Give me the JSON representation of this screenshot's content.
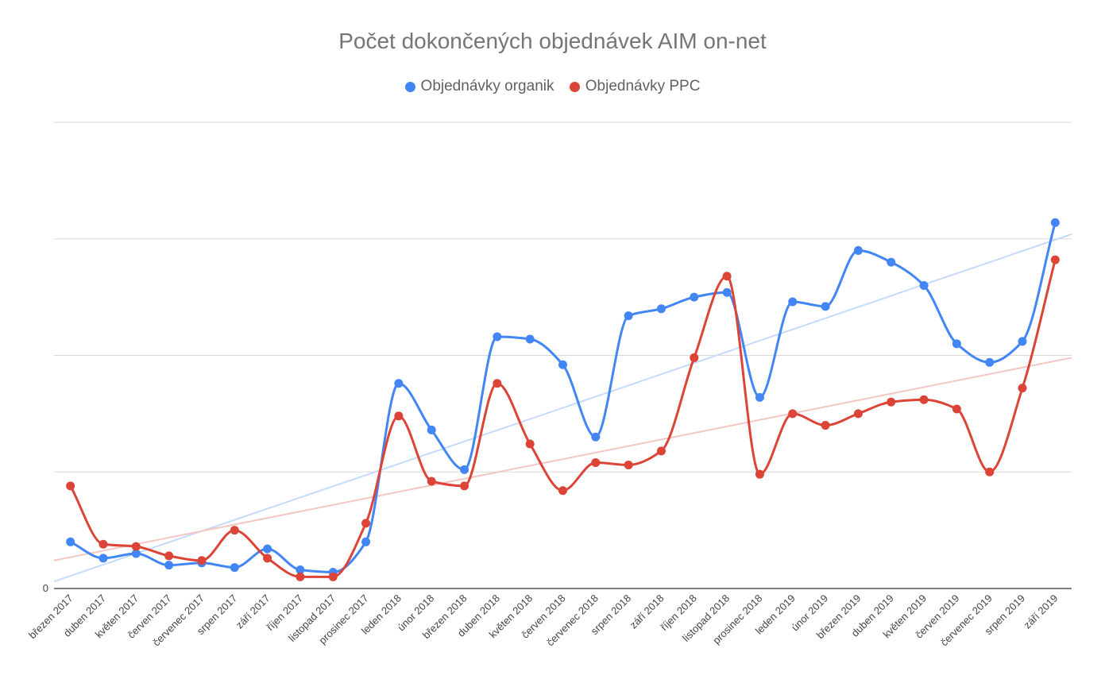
{
  "chart_data": {
    "type": "line",
    "title": "Počet dokončených objednávek AIM on-net",
    "xlabel": "",
    "ylabel": "",
    "y_tick_labels": [
      "0"
    ],
    "ylim": [
      0,
      100
    ],
    "grid": true,
    "legend_position": "top",
    "smooth": true,
    "categories": [
      "březen 2017",
      "duben 2017",
      "květen 2017",
      "červen 2017",
      "červenec 2017",
      "srpen 2017",
      "září 2017",
      "říjen 2017",
      "listopad 2017",
      "prosinec 2017",
      "leden 2018",
      "únor 2018",
      "březen 2018",
      "duben 2018",
      "květen 2018",
      "červen 2018",
      "červenec 2018",
      "srpen 2018",
      "září 2018",
      "říjen 2018",
      "listopad 2018",
      "prosinec 2018",
      "leden 2019",
      "únor 2019",
      "březen 2019",
      "duben 2019",
      "květen 2019",
      "červen 2019",
      "červenec 2019",
      "srpen 2019",
      "září 2019"
    ],
    "series": [
      {
        "name": "Objednávky organik",
        "color": "#4285f4",
        "values": [
          10,
          6.5,
          7.5,
          5,
          5.5,
          4.5,
          8.5,
          4,
          3.5,
          10,
          44,
          34,
          25.5,
          54,
          53.5,
          48,
          32.5,
          58.5,
          60,
          62.5,
          63.5,
          41,
          61.5,
          60.5,
          72.5,
          70,
          65,
          52.5,
          48.5,
          53,
          78.5
        ],
        "trendline": [
          1.5,
          76
        ]
      },
      {
        "name": "Objednávky PPC",
        "color": "#db4437",
        "values": [
          22,
          9.5,
          9,
          7,
          6,
          12.5,
          6.5,
          2.5,
          2.5,
          14,
          37,
          23,
          22,
          44,
          31,
          21,
          27,
          26.5,
          29.5,
          49.5,
          67,
          24.5,
          37.5,
          35,
          37.5,
          40,
          40.5,
          38.5,
          25,
          43,
          70.5
        ],
        "trendline": [
          6,
          49.5
        ]
      }
    ]
  }
}
